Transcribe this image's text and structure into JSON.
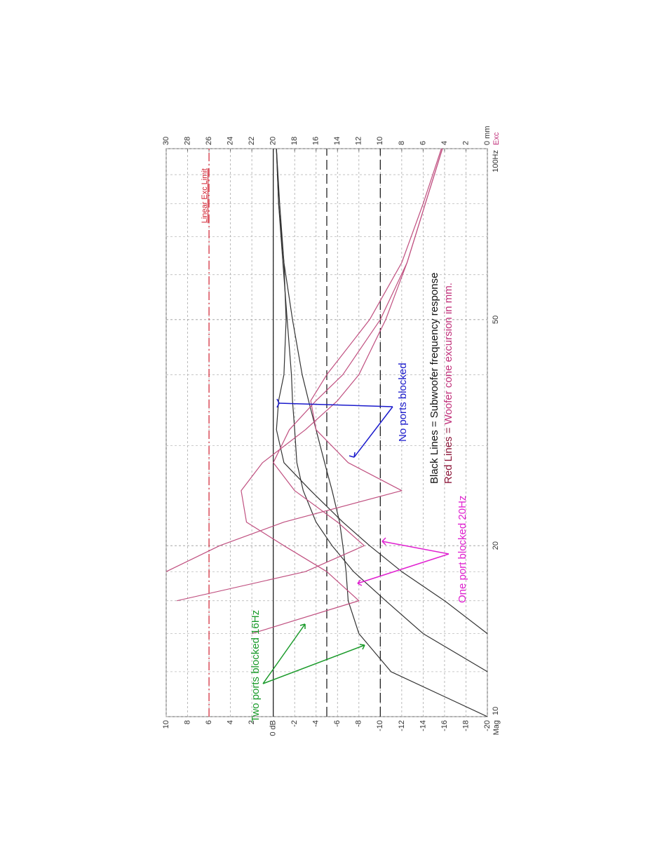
{
  "chart_data": {
    "type": "line",
    "log_x": true,
    "grid": true,
    "y_label": "Mag",
    "y2_label": "Exc",
    "y2_label_color": "#c0307a",
    "x": [
      10,
      12,
      14,
      16,
      18,
      20,
      22,
      25,
      28,
      32,
      36,
      40,
      50,
      63,
      80,
      100
    ],
    "xlim": [
      10,
      100
    ],
    "xticks": [
      10,
      20,
      50,
      {
        "value": 100,
        "label": "100Hz"
      }
    ],
    "x_minor_ticks": [
      12,
      14,
      16,
      18,
      30,
      40,
      60,
      70,
      80,
      90
    ],
    "ylim": [
      -20,
      10
    ],
    "yticks": [
      -20,
      -18,
      -16,
      -14,
      -12,
      -10,
      -8,
      -6,
      -4,
      -2,
      {
        "value": 0,
        "label": "0 dB"
      },
      2,
      4,
      6,
      8,
      10
    ],
    "y2lim": [
      0,
      30
    ],
    "y2ticks": [
      {
        "value": 0,
        "label": "0 mm"
      },
      2,
      4,
      6,
      8,
      10,
      12,
      14,
      16,
      18,
      20,
      22,
      24,
      26,
      28,
      30
    ],
    "reference_lines": [
      {
        "value": 0,
        "style": "solid",
        "color": "#222"
      },
      {
        "value": -5,
        "style": "dashed",
        "color": "#222"
      },
      {
        "value": -10,
        "style": "dashed",
        "color": "#222"
      }
    ],
    "limit_line": {
      "text": "Linear Exc Limit",
      "value": 26,
      "axis": "y2",
      "color": "#d02030"
    },
    "series": [
      {
        "color": "#333333",
        "values": [
          -20,
          -11,
          -8,
          -7,
          -6.8,
          -6.5,
          -6.2,
          -5.5,
          -4.8,
          -4,
          -3.3,
          -2.7,
          -1.8,
          -1,
          -0.5,
          -0.3
        ]
      },
      {
        "color": "#333333",
        "values": [
          null,
          -20,
          -14,
          -10.5,
          -7.5,
          -5.5,
          -4,
          -2.8,
          -2.2,
          -2,
          -1.8,
          -1.7,
          -1.3,
          -0.9,
          -0.5,
          -0.3
        ]
      },
      {
        "color": "#333333",
        "values": [
          null,
          null,
          -20,
          -16,
          -12,
          -9,
          -6.5,
          -3.5,
          -1,
          -0.3,
          -0.5,
          -1,
          -1.2,
          -1,
          -0.6,
          -0.3
        ]
      },
      {
        "color": "#c05080",
        "axis": "y2",
        "values": [
          null,
          null,
          22,
          12,
          15,
          19,
          22.5,
          23,
          21,
          17,
          14,
          12,
          9.5,
          7.5,
          5.8,
          4.2
        ]
      },
      {
        "color": "#c05080",
        "axis": "y2",
        "values": [
          null,
          null,
          null,
          29,
          17,
          11.5,
          14,
          18,
          20,
          18.5,
          16,
          13.5,
          10,
          7.5,
          5.8,
          4.2
        ]
      },
      {
        "color": "#c05080",
        "axis": "y2",
        "values": [
          null,
          null,
          null,
          null,
          30,
          25,
          19,
          8,
          13,
          16,
          16.5,
          15,
          11,
          8,
          6,
          4.3
        ]
      }
    ],
    "annotations": [
      {
        "text": "Black Lines = Subwoofer frequency response",
        "color": "#111111"
      },
      {
        "text": "Red Lines = ",
        "color": "#8b1538"
      },
      {
        "text": "Woofer cone excursion in mm.",
        "color": "#c0307a"
      },
      {
        "text": "No ports blocked",
        "color": "#1a1acc"
      },
      {
        "text": "One port blocked 20Hz",
        "color": "#e020d0"
      },
      {
        "text": "Two ports blocked 16Hz",
        "color": "#1a9a2a"
      }
    ]
  }
}
